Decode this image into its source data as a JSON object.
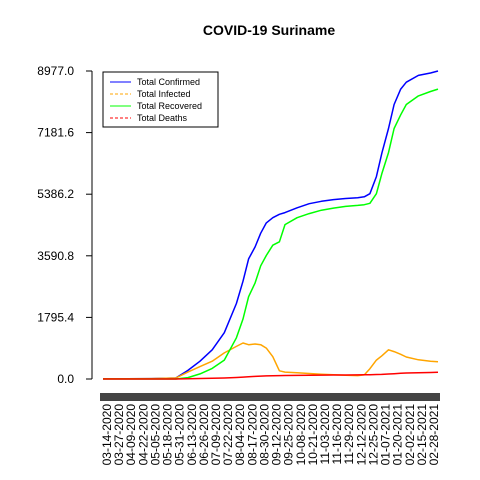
{
  "chart_data": {
    "type": "line",
    "title": "COVID-19 Suriname",
    "xlabel": "",
    "ylabel": "",
    "y_ticks": [
      "0.0",
      "1795.4",
      "3590.8",
      "5386.2",
      "7181.6",
      "8977.0"
    ],
    "ylim": [
      0,
      8977.0
    ],
    "x_ticks": [
      "03-14-2020",
      "03-27-2020",
      "04-09-2020",
      "04-22-2020",
      "05-05-2020",
      "05-18-2020",
      "05-31-2020",
      "06-13-2020",
      "06-26-2020",
      "07-09-2020",
      "07-22-2020",
      "08-04-2020",
      "08-17-2020",
      "08-30-2020",
      "09-12-2020",
      "09-25-2020",
      "10-08-2020",
      "10-21-2020",
      "11-03-2020",
      "11-16-2020",
      "11-29-2020",
      "12-12-2020",
      "12-25-2020",
      "01-07-2021",
      "01-20-2021",
      "02-02-2021",
      "02-15-2021",
      "02-28-2021"
    ],
    "legend_position": "top-left",
    "grid": false,
    "x": [
      "03-14-2020",
      "04-09-2020",
      "05-05-2020",
      "05-31-2020",
      "06-13-2020",
      "06-26-2020",
      "07-09-2020",
      "07-22-2020",
      "08-04-2020",
      "08-11-2020",
      "08-17-2020",
      "08-24-2020",
      "08-30-2020",
      "09-05-2020",
      "09-12-2020",
      "09-19-2020",
      "09-25-2020",
      "10-08-2020",
      "10-21-2020",
      "11-03-2020",
      "11-16-2020",
      "11-29-2020",
      "12-12-2020",
      "12-19-2020",
      "12-25-2020",
      "01-01-2021",
      "01-07-2021",
      "01-14-2021",
      "01-20-2021",
      "01-27-2021",
      "02-02-2021",
      "02-15-2021",
      "02-28-2021",
      "03-08-2021"
    ],
    "series": [
      {
        "name": "Total Confirmed",
        "color": "#0000ff",
        "style": "solid",
        "values": [
          10,
          10,
          12,
          30,
          250,
          520,
          850,
          1350,
          2200,
          2850,
          3500,
          3850,
          4250,
          4550,
          4700,
          4800,
          4850,
          4990,
          5110,
          5180,
          5230,
          5260,
          5280,
          5310,
          5400,
          5900,
          6600,
          7300,
          8000,
          8450,
          8650,
          8850,
          8920,
          8977
        ]
      },
      {
        "name": "Total Infected",
        "color": "#ffa500",
        "style": "dashed",
        "values": [
          10,
          10,
          12,
          30,
          200,
          360,
          520,
          760,
          950,
          1050,
          1000,
          1020,
          1000,
          900,
          650,
          240,
          200,
          185,
          160,
          140,
          125,
          110,
          100,
          120,
          300,
          550,
          680,
          850,
          800,
          720,
          640,
          560,
          520,
          500
        ]
      },
      {
        "name": "Total Recovered",
        "color": "#00ff00",
        "style": "solid",
        "values": [
          0,
          0,
          0,
          0,
          40,
          150,
          310,
          550,
          1200,
          1750,
          2400,
          2800,
          3300,
          3600,
          3900,
          4000,
          4500,
          4700,
          4820,
          4920,
          4980,
          5030,
          5060,
          5080,
          5120,
          5400,
          6000,
          6600,
          7300,
          7700,
          8000,
          8250,
          8380,
          8450
        ]
      },
      {
        "name": "Total Deaths",
        "color": "#ff0000",
        "style": "dashed",
        "values": [
          0,
          1,
          1,
          1,
          10,
          15,
          20,
          30,
          45,
          55,
          65,
          75,
          85,
          90,
          95,
          100,
          103,
          106,
          110,
          113,
          116,
          118,
          120,
          122,
          125,
          130,
          135,
          145,
          155,
          165,
          175,
          185,
          190,
          195
        ]
      }
    ]
  }
}
